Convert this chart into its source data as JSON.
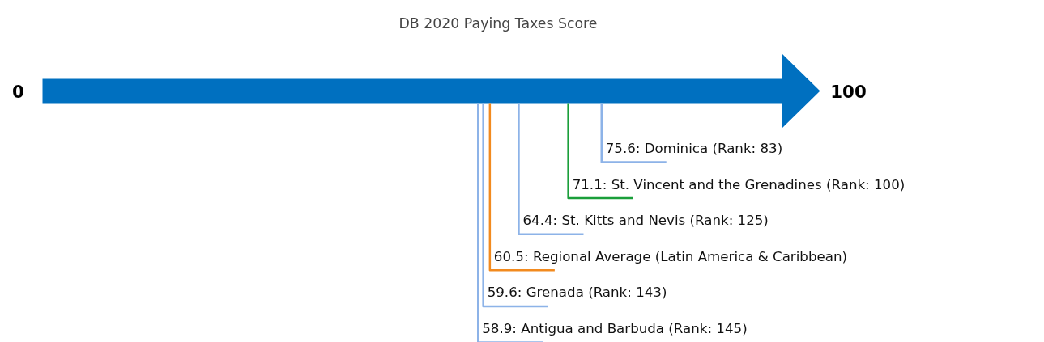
{
  "chart_data": {
    "type": "other",
    "title": "DB 2020 Paying Taxes Score",
    "categories": [
      "Dominica (Rank: 83)",
      "St. Vincent and the Grenadines (Rank: 100)",
      "St. Kitts and Nevis (Rank: 125)",
      "Regional Average (Latin America & Caribbean)",
      "Grenada (Rank: 143)",
      "Antigua and Barbuda (Rank: 145)"
    ],
    "values": [
      75.6,
      71.1,
      64.4,
      60.5,
      59.6,
      58.9
    ],
    "value_labels": [
      "75.6:",
      "71.1:",
      "64.4:",
      "60.5:",
      "59.6:",
      "58.9:"
    ],
    "colors": [
      "#8db3e8",
      "#1a9e3a",
      "#8db3e8",
      "#f28a1e",
      "#8db3e8",
      "#8db3e8"
    ],
    "annotations": [
      "0",
      "100"
    ]
  }
}
